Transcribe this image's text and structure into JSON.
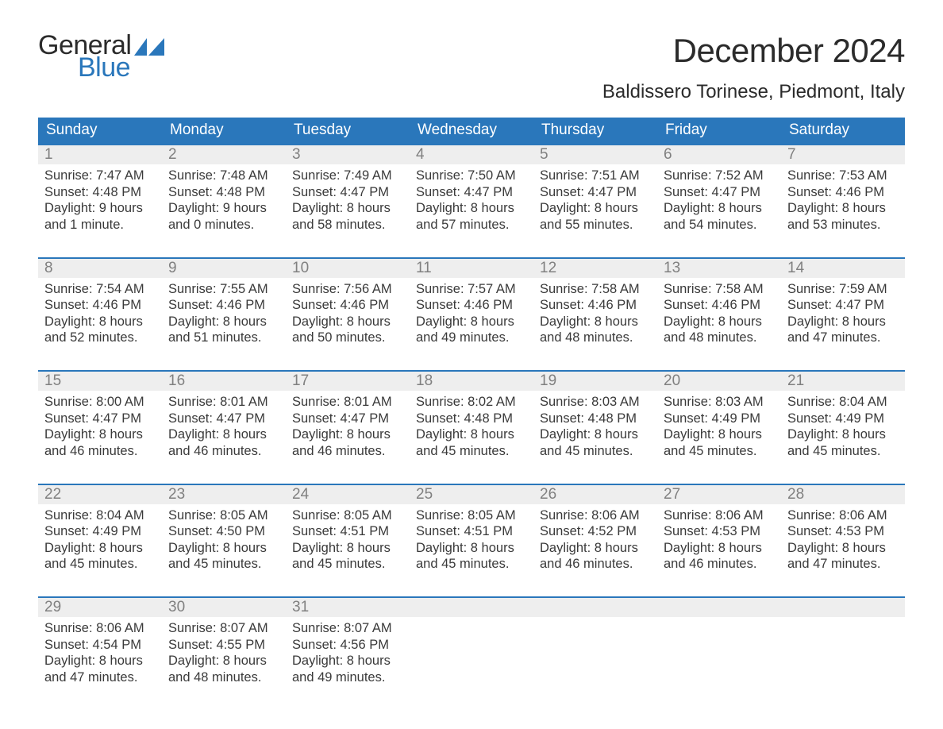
{
  "logo": {
    "text1": "General",
    "text2": "Blue"
  },
  "title": "December 2024",
  "location": "Baldissero Torinese, Piedmont, Italy",
  "colors": {
    "header_blue": "#2a77bb",
    "row_band": "#eeeeee",
    "day_gray": "#808080",
    "text": "#3a3a3a",
    "background": "#ffffff"
  },
  "calendar": {
    "columns": [
      "Sunday",
      "Monday",
      "Tuesday",
      "Wednesday",
      "Thursday",
      "Friday",
      "Saturday"
    ],
    "weeks": [
      [
        {
          "n": "1",
          "sr": "Sunrise: 7:47 AM",
          "ss": "Sunset: 4:48 PM",
          "d1": "Daylight: 9 hours",
          "d2": "and 1 minute."
        },
        {
          "n": "2",
          "sr": "Sunrise: 7:48 AM",
          "ss": "Sunset: 4:48 PM",
          "d1": "Daylight: 9 hours",
          "d2": "and 0 minutes."
        },
        {
          "n": "3",
          "sr": "Sunrise: 7:49 AM",
          "ss": "Sunset: 4:47 PM",
          "d1": "Daylight: 8 hours",
          "d2": "and 58 minutes."
        },
        {
          "n": "4",
          "sr": "Sunrise: 7:50 AM",
          "ss": "Sunset: 4:47 PM",
          "d1": "Daylight: 8 hours",
          "d2": "and 57 minutes."
        },
        {
          "n": "5",
          "sr": "Sunrise: 7:51 AM",
          "ss": "Sunset: 4:47 PM",
          "d1": "Daylight: 8 hours",
          "d2": "and 55 minutes."
        },
        {
          "n": "6",
          "sr": "Sunrise: 7:52 AM",
          "ss": "Sunset: 4:47 PM",
          "d1": "Daylight: 8 hours",
          "d2": "and 54 minutes."
        },
        {
          "n": "7",
          "sr": "Sunrise: 7:53 AM",
          "ss": "Sunset: 4:46 PM",
          "d1": "Daylight: 8 hours",
          "d2": "and 53 minutes."
        }
      ],
      [
        {
          "n": "8",
          "sr": "Sunrise: 7:54 AM",
          "ss": "Sunset: 4:46 PM",
          "d1": "Daylight: 8 hours",
          "d2": "and 52 minutes."
        },
        {
          "n": "9",
          "sr": "Sunrise: 7:55 AM",
          "ss": "Sunset: 4:46 PM",
          "d1": "Daylight: 8 hours",
          "d2": "and 51 minutes."
        },
        {
          "n": "10",
          "sr": "Sunrise: 7:56 AM",
          "ss": "Sunset: 4:46 PM",
          "d1": "Daylight: 8 hours",
          "d2": "and 50 minutes."
        },
        {
          "n": "11",
          "sr": "Sunrise: 7:57 AM",
          "ss": "Sunset: 4:46 PM",
          "d1": "Daylight: 8 hours",
          "d2": "and 49 minutes."
        },
        {
          "n": "12",
          "sr": "Sunrise: 7:58 AM",
          "ss": "Sunset: 4:46 PM",
          "d1": "Daylight: 8 hours",
          "d2": "and 48 minutes."
        },
        {
          "n": "13",
          "sr": "Sunrise: 7:58 AM",
          "ss": "Sunset: 4:46 PM",
          "d1": "Daylight: 8 hours",
          "d2": "and 48 minutes."
        },
        {
          "n": "14",
          "sr": "Sunrise: 7:59 AM",
          "ss": "Sunset: 4:47 PM",
          "d1": "Daylight: 8 hours",
          "d2": "and 47 minutes."
        }
      ],
      [
        {
          "n": "15",
          "sr": "Sunrise: 8:00 AM",
          "ss": "Sunset: 4:47 PM",
          "d1": "Daylight: 8 hours",
          "d2": "and 46 minutes."
        },
        {
          "n": "16",
          "sr": "Sunrise: 8:01 AM",
          "ss": "Sunset: 4:47 PM",
          "d1": "Daylight: 8 hours",
          "d2": "and 46 minutes."
        },
        {
          "n": "17",
          "sr": "Sunrise: 8:01 AM",
          "ss": "Sunset: 4:47 PM",
          "d1": "Daylight: 8 hours",
          "d2": "and 46 minutes."
        },
        {
          "n": "18",
          "sr": "Sunrise: 8:02 AM",
          "ss": "Sunset: 4:48 PM",
          "d1": "Daylight: 8 hours",
          "d2": "and 45 minutes."
        },
        {
          "n": "19",
          "sr": "Sunrise: 8:03 AM",
          "ss": "Sunset: 4:48 PM",
          "d1": "Daylight: 8 hours",
          "d2": "and 45 minutes."
        },
        {
          "n": "20",
          "sr": "Sunrise: 8:03 AM",
          "ss": "Sunset: 4:49 PM",
          "d1": "Daylight: 8 hours",
          "d2": "and 45 minutes."
        },
        {
          "n": "21",
          "sr": "Sunrise: 8:04 AM",
          "ss": "Sunset: 4:49 PM",
          "d1": "Daylight: 8 hours",
          "d2": "and 45 minutes."
        }
      ],
      [
        {
          "n": "22",
          "sr": "Sunrise: 8:04 AM",
          "ss": "Sunset: 4:49 PM",
          "d1": "Daylight: 8 hours",
          "d2": "and 45 minutes."
        },
        {
          "n": "23",
          "sr": "Sunrise: 8:05 AM",
          "ss": "Sunset: 4:50 PM",
          "d1": "Daylight: 8 hours",
          "d2": "and 45 minutes."
        },
        {
          "n": "24",
          "sr": "Sunrise: 8:05 AM",
          "ss": "Sunset: 4:51 PM",
          "d1": "Daylight: 8 hours",
          "d2": "and 45 minutes."
        },
        {
          "n": "25",
          "sr": "Sunrise: 8:05 AM",
          "ss": "Sunset: 4:51 PM",
          "d1": "Daylight: 8 hours",
          "d2": "and 45 minutes."
        },
        {
          "n": "26",
          "sr": "Sunrise: 8:06 AM",
          "ss": "Sunset: 4:52 PM",
          "d1": "Daylight: 8 hours",
          "d2": "and 46 minutes."
        },
        {
          "n": "27",
          "sr": "Sunrise: 8:06 AM",
          "ss": "Sunset: 4:53 PM",
          "d1": "Daylight: 8 hours",
          "d2": "and 46 minutes."
        },
        {
          "n": "28",
          "sr": "Sunrise: 8:06 AM",
          "ss": "Sunset: 4:53 PM",
          "d1": "Daylight: 8 hours",
          "d2": "and 47 minutes."
        }
      ],
      [
        {
          "n": "29",
          "sr": "Sunrise: 8:06 AM",
          "ss": "Sunset: 4:54 PM",
          "d1": "Daylight: 8 hours",
          "d2": "and 47 minutes."
        },
        {
          "n": "30",
          "sr": "Sunrise: 8:07 AM",
          "ss": "Sunset: 4:55 PM",
          "d1": "Daylight: 8 hours",
          "d2": "and 48 minutes."
        },
        {
          "n": "31",
          "sr": "Sunrise: 8:07 AM",
          "ss": "Sunset: 4:56 PM",
          "d1": "Daylight: 8 hours",
          "d2": "and 49 minutes."
        }
      ]
    ]
  }
}
